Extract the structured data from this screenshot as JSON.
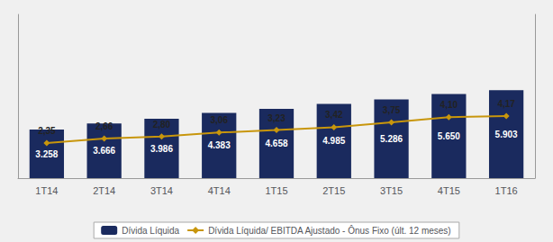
{
  "chart_data": {
    "type": "bar",
    "categories": [
      "1T14",
      "2T14",
      "3T14",
      "4T14",
      "1T15",
      "2T15",
      "3T15",
      "4T15",
      "1T16"
    ],
    "series": [
      {
        "name": "Dívida Líquida",
        "type": "bar",
        "color": "#1a2a5e",
        "values": [
          3258,
          3666,
          3986,
          4383,
          4658,
          4985,
          5286,
          5650,
          5903
        ],
        "value_labels": [
          "3.258",
          "3.666",
          "3.986",
          "4.383",
          "4.658",
          "4.985",
          "5.286",
          "5.650",
          "5.903"
        ]
      },
      {
        "name": "Dívida Líquida/ EBITDA Ajustado - Ônus Fixo (últ. 12 meses)",
        "type": "line",
        "axis": "y2",
        "color": "#c8960c",
        "marker": "diamond",
        "values": [
          2.35,
          2.66,
          2.8,
          3.06,
          3.23,
          3.42,
          3.75,
          4.1,
          4.17
        ],
        "value_labels": [
          "2,35",
          "2,66",
          "2,80",
          "3,06",
          "3,23",
          "3,42",
          "3,75",
          "4,10",
          "4,17"
        ]
      }
    ],
    "ylim": [
      0,
      11000
    ],
    "yticks": [],
    "y2lim": [
      0,
      11.0
    ],
    "y2ticks": [],
    "tick_labels": "x",
    "grid": false,
    "legend": "bottom",
    "data_labels": true
  }
}
